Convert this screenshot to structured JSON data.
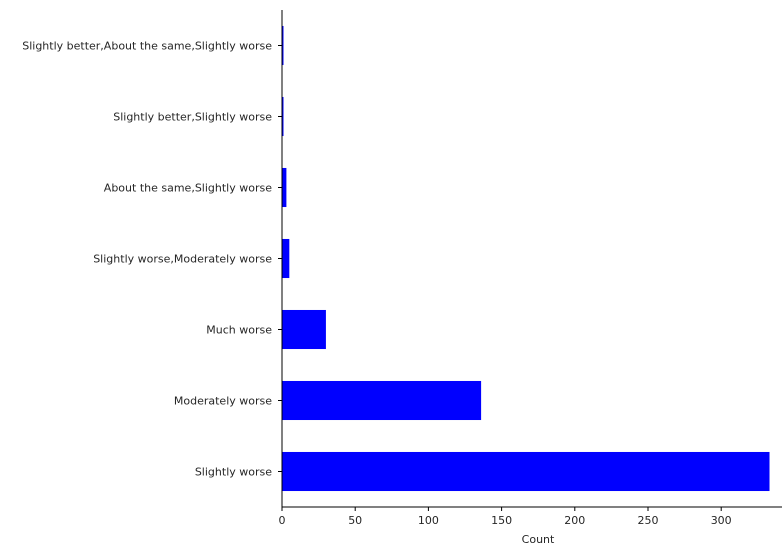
{
  "chart_data": {
    "type": "bar",
    "orientation": "horizontal",
    "categories": [
      "Slightly worse",
      "Moderately worse",
      "Much worse",
      "Slightly worse,Moderately worse",
      "About the same,Slightly worse",
      "Slightly better,Slightly worse",
      "Slightly better,About the same,Slightly worse"
    ],
    "values": [
      333,
      136,
      30,
      5,
      3,
      1,
      1
    ],
    "xlabel": "Count",
    "ylabel": "",
    "xlim": [
      0,
      340
    ],
    "xticks": [
      0,
      50,
      100,
      150,
      200,
      250,
      300
    ],
    "grid": false,
    "bar_color": "#0000ff"
  }
}
